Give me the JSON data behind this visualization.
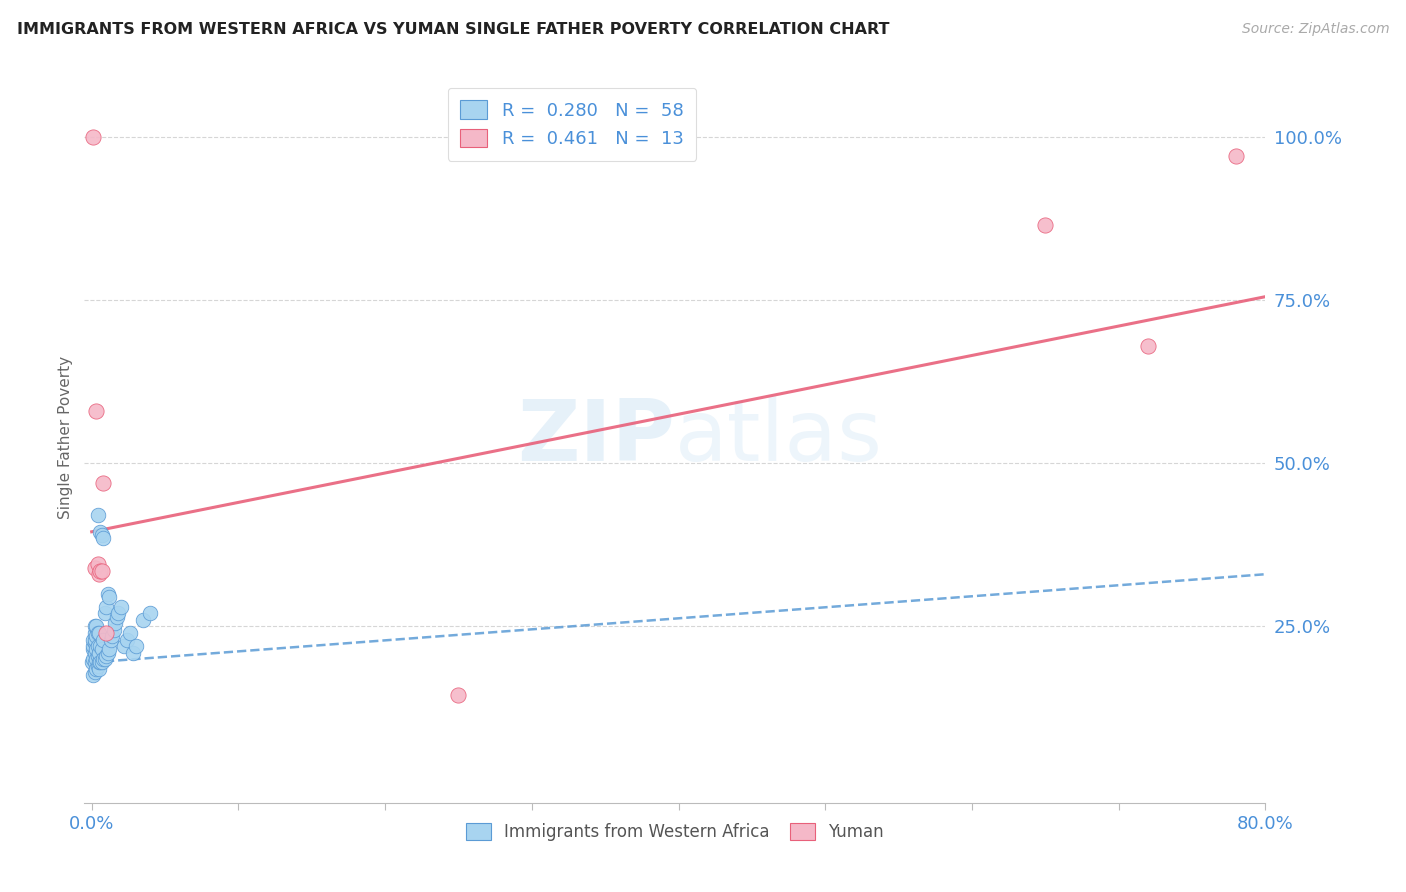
{
  "title": "IMMIGRANTS FROM WESTERN AFRICA VS YUMAN SINGLE FATHER POVERTY CORRELATION CHART",
  "source": "Source: ZipAtlas.com",
  "ylabel": "Single Father Poverty",
  "ytick_labels": [
    "100.0%",
    "75.0%",
    "50.0%",
    "25.0%"
  ],
  "ytick_values": [
    1.0,
    0.75,
    0.5,
    0.25
  ],
  "legend_blue_R": "0.280",
  "legend_blue_N": "58",
  "legend_pink_R": "0.461",
  "legend_pink_N": "13",
  "legend_label_blue": "Immigrants from Western Africa",
  "legend_label_pink": "Yuman",
  "blue_color": "#a8d4f0",
  "pink_color": "#f5b8c8",
  "blue_line_color": "#5b9bd5",
  "pink_line_color": "#e8607a",
  "watermark_color": "#d0e8f8",
  "blue_line_x": [
    0.0,
    0.8
  ],
  "blue_line_y": [
    0.195,
    0.33
  ],
  "pink_line_x": [
    0.0,
    0.8
  ],
  "pink_line_y": [
    0.395,
    0.755
  ],
  "blue_scatter_x": [
    0.0,
    0.001,
    0.001,
    0.001,
    0.001,
    0.001,
    0.002,
    0.002,
    0.002,
    0.002,
    0.002,
    0.002,
    0.002,
    0.003,
    0.003,
    0.003,
    0.003,
    0.003,
    0.004,
    0.004,
    0.004,
    0.004,
    0.004,
    0.005,
    0.005,
    0.005,
    0.005,
    0.006,
    0.006,
    0.006,
    0.007,
    0.007,
    0.007,
    0.008,
    0.008,
    0.008,
    0.009,
    0.009,
    0.01,
    0.01,
    0.011,
    0.011,
    0.012,
    0.012,
    0.013,
    0.014,
    0.015,
    0.016,
    0.017,
    0.018,
    0.02,
    0.022,
    0.024,
    0.026,
    0.028,
    0.03,
    0.035,
    0.04
  ],
  "blue_scatter_y": [
    0.195,
    0.175,
    0.2,
    0.215,
    0.22,
    0.23,
    0.18,
    0.195,
    0.21,
    0.225,
    0.23,
    0.24,
    0.25,
    0.185,
    0.2,
    0.215,
    0.235,
    0.25,
    0.19,
    0.205,
    0.22,
    0.24,
    0.42,
    0.185,
    0.195,
    0.21,
    0.24,
    0.195,
    0.22,
    0.395,
    0.195,
    0.215,
    0.39,
    0.2,
    0.23,
    0.385,
    0.2,
    0.27,
    0.205,
    0.28,
    0.21,
    0.3,
    0.215,
    0.295,
    0.23,
    0.235,
    0.245,
    0.255,
    0.265,
    0.27,
    0.28,
    0.22,
    0.23,
    0.24,
    0.21,
    0.22,
    0.26,
    0.27
  ],
  "pink_scatter_x": [
    0.001,
    0.002,
    0.003,
    0.004,
    0.005,
    0.006,
    0.007,
    0.008,
    0.01,
    0.25,
    0.65,
    0.72,
    0.78
  ],
  "pink_scatter_y": [
    1.0,
    0.34,
    0.58,
    0.345,
    0.33,
    0.335,
    0.335,
    0.47,
    0.24,
    0.145,
    0.865,
    0.68,
    0.97
  ],
  "xlim": [
    -0.005,
    0.8
  ],
  "ylim": [
    -0.02,
    1.1
  ],
  "xtick_positions": [
    0.0,
    0.1,
    0.2,
    0.3,
    0.4,
    0.5,
    0.6,
    0.7,
    0.8
  ],
  "xtick_labels": [
    "0.0%",
    "",
    "",
    "",
    "",
    "",
    "",
    "",
    "80.0%"
  ]
}
